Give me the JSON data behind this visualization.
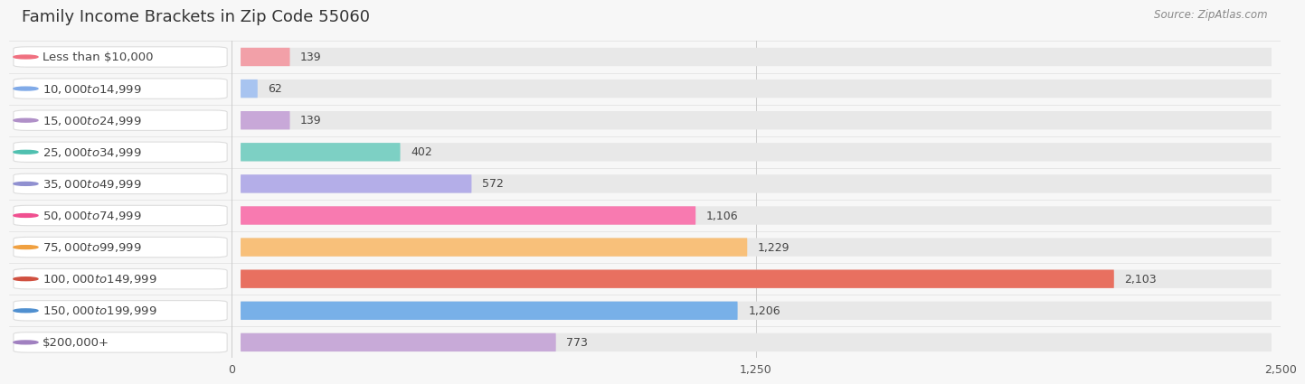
{
  "title": "Family Income Brackets in Zip Code 55060",
  "source": "Source: ZipAtlas.com",
  "categories": [
    "Less than $10,000",
    "$10,000 to $14,999",
    "$15,000 to $24,999",
    "$25,000 to $34,999",
    "$35,000 to $49,999",
    "$50,000 to $74,999",
    "$75,000 to $99,999",
    "$100,000 to $149,999",
    "$150,000 to $199,999",
    "$200,000+"
  ],
  "values": [
    139,
    62,
    139,
    402,
    572,
    1106,
    1229,
    2103,
    1206,
    773
  ],
  "bar_colors": [
    "#f2a0a8",
    "#a8c4f0",
    "#c8a8d8",
    "#7dd0c4",
    "#b4aee8",
    "#f87ab0",
    "#f8c07a",
    "#e87060",
    "#78b0e8",
    "#c8aad8"
  ],
  "dot_colors": [
    "#f07080",
    "#80aae8",
    "#b090c8",
    "#50c0b0",
    "#9090d0",
    "#f05090",
    "#f0a040",
    "#d05040",
    "#5090d0",
    "#a080c0"
  ],
  "xlim": [
    0,
    2500
  ],
  "xticks": [
    0,
    1250,
    2500
  ],
  "background_color": "#f7f7f7",
  "bar_bg_color": "#e8e8e8",
  "label_bg_color": "#ffffff",
  "title_fontsize": 13,
  "label_fontsize": 9.5,
  "value_fontsize": 9,
  "source_fontsize": 8.5,
  "bar_height": 0.58,
  "row_sep_color": "#e0e0e0"
}
